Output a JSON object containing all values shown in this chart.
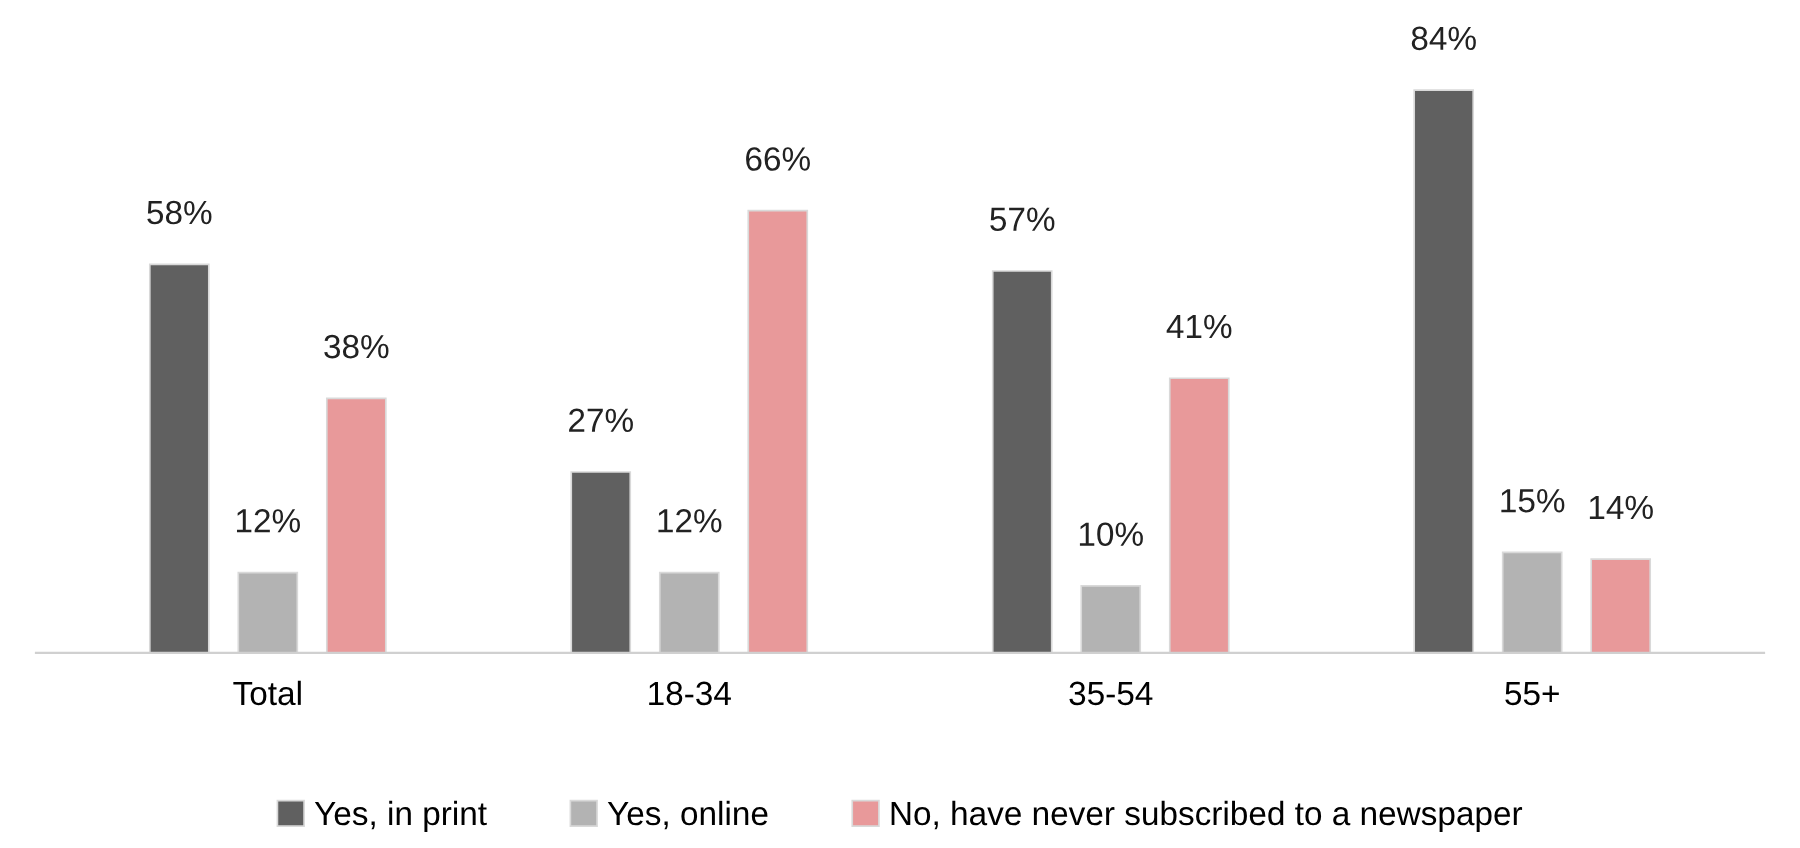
{
  "chart_data": {
    "type": "bar",
    "categories": [
      "Total",
      "18-34",
      "35-54",
      "55+"
    ],
    "series": [
      {
        "name": "Yes, in print",
        "color": "#606060",
        "values": [
          58,
          27,
          57,
          84
        ],
        "value_labels": [
          "58%",
          "27%",
          "57%",
          "84%"
        ]
      },
      {
        "name": "Yes, online",
        "color": "#b3b3b3",
        "values": [
          12,
          12,
          10,
          15
        ],
        "value_labels": [
          "12%",
          "12%",
          "10%",
          "15%"
        ]
      },
      {
        "name": "No, have never subscribed to a newspaper",
        "color": "#e8999a",
        "values": [
          38,
          66,
          41,
          14
        ],
        "value_labels": [
          "38%",
          "66%",
          "41%",
          "14%"
        ]
      }
    ],
    "legend": "bottom",
    "grid": false
  }
}
